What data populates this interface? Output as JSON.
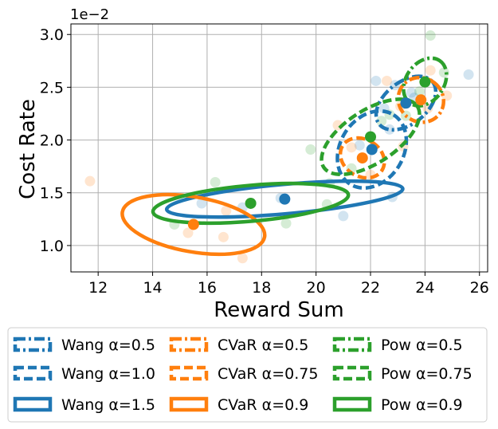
{
  "chart_data": {
    "type": "scatter",
    "title": "",
    "xlabel": "Reward Sum",
    "ylabel": "Cost Rate",
    "y_offset_label": "1e−2",
    "xlim": [
      11.0,
      26.3
    ],
    "ylim": [
      0.75,
      3.1
    ],
    "xticks": [
      12,
      14,
      16,
      18,
      20,
      22,
      24,
      26
    ],
    "yticks": [
      1.0,
      1.5,
      2.0,
      2.5,
      3.0
    ],
    "xtick_labels": [
      "12",
      "14",
      "16",
      "18",
      "20",
      "22",
      "24",
      "26"
    ],
    "ytick_labels": [
      "1.0",
      "1.5",
      "2.0",
      "2.5",
      "3.0"
    ],
    "grid": true,
    "colors": {
      "wang": "#1f77b4",
      "cvar": "#ff7f0e",
      "pow": "#2ca02c"
    },
    "scatter_points": [
      {
        "family": "wang",
        "x": 15.8,
        "y": 1.4
      },
      {
        "family": "wang",
        "x": 17.3,
        "y": 1.36
      },
      {
        "family": "wang",
        "x": 18.7,
        "y": 1.45
      },
      {
        "family": "wang",
        "x": 21.0,
        "y": 1.28
      },
      {
        "family": "wang",
        "x": 22.8,
        "y": 1.46
      },
      {
        "family": "wang",
        "x": 22.2,
        "y": 2.56
      },
      {
        "family": "wang",
        "x": 22.9,
        "y": 2.52
      },
      {
        "family": "wang",
        "x": 25.6,
        "y": 2.62
      },
      {
        "family": "wang",
        "x": 23.6,
        "y": 2.4
      },
      {
        "family": "wang",
        "x": 22.5,
        "y": 2.3
      },
      {
        "family": "wang",
        "x": 21.6,
        "y": 1.95
      },
      {
        "family": "wang",
        "x": 22.7,
        "y": 2.1
      },
      {
        "family": "wang",
        "x": 23.5,
        "y": 2.45
      },
      {
        "family": "cvar",
        "x": 11.7,
        "y": 1.61
      },
      {
        "family": "cvar",
        "x": 15.3,
        "y": 1.12
      },
      {
        "family": "cvar",
        "x": 16.6,
        "y": 1.08
      },
      {
        "family": "cvar",
        "x": 17.3,
        "y": 0.88
      },
      {
        "family": "cvar",
        "x": 16.7,
        "y": 1.33
      },
      {
        "family": "cvar",
        "x": 20.8,
        "y": 2.14
      },
      {
        "family": "cvar",
        "x": 21.3,
        "y": 1.93
      },
      {
        "family": "cvar",
        "x": 22.0,
        "y": 1.67
      },
      {
        "family": "cvar",
        "x": 23.2,
        "y": 1.94
      },
      {
        "family": "cvar",
        "x": 23.1,
        "y": 2.32
      },
      {
        "family": "cvar",
        "x": 24.1,
        "y": 2.3
      },
      {
        "family": "cvar",
        "x": 24.8,
        "y": 2.42
      },
      {
        "family": "cvar",
        "x": 24.2,
        "y": 2.66
      },
      {
        "family": "cvar",
        "x": 22.6,
        "y": 2.56
      },
      {
        "family": "pow",
        "x": 14.8,
        "y": 1.2
      },
      {
        "family": "pow",
        "x": 16.3,
        "y": 1.6
      },
      {
        "family": "pow",
        "x": 18.9,
        "y": 1.21
      },
      {
        "family": "pow",
        "x": 19.8,
        "y": 1.91
      },
      {
        "family": "pow",
        "x": 20.4,
        "y": 1.39
      },
      {
        "family": "pow",
        "x": 20.5,
        "y": 1.59
      },
      {
        "family": "pow",
        "x": 21.3,
        "y": 1.73
      },
      {
        "family": "pow",
        "x": 22.4,
        "y": 2.18
      },
      {
        "family": "pow",
        "x": 22.7,
        "y": 2.24
      },
      {
        "family": "pow",
        "x": 23.3,
        "y": 2.23
      },
      {
        "family": "pow",
        "x": 24.2,
        "y": 2.99
      },
      {
        "family": "pow",
        "x": 24.7,
        "y": 2.64
      },
      {
        "family": "pow",
        "x": 23.8,
        "y": 2.46
      }
    ],
    "series": [
      {
        "name": "Wang α=0.5",
        "family": "wang",
        "style": "dashdot",
        "mean": [
          23.3,
          2.35
        ],
        "semi_axes": [
          1.25,
          0.2
        ],
        "angle_deg": 38
      },
      {
        "name": "Wang α=1.0",
        "family": "wang",
        "style": "dashed",
        "mean": [
          22.05,
          1.91
        ],
        "semi_axes": [
          1.5,
          0.3
        ],
        "angle_deg": 58
      },
      {
        "name": "Wang α=1.5",
        "family": "wang",
        "style": "solid",
        "mean": [
          18.85,
          1.44
        ],
        "semi_axes": [
          4.35,
          0.14
        ],
        "angle_deg": 5
      },
      {
        "name": "CVaR α=0.5",
        "family": "cvar",
        "style": "dashdot",
        "mean": [
          23.85,
          2.38
        ],
        "semi_axes": [
          0.8,
          0.22
        ],
        "angle_deg": 52
      },
      {
        "name": "CVaR α=0.75",
        "family": "cvar",
        "style": "dashed",
        "mean": [
          21.7,
          1.83
        ],
        "semi_axes": [
          0.68,
          0.22
        ],
        "angle_deg": 58
      },
      {
        "name": "CVaR α=0.9",
        "family": "cvar",
        "style": "solid",
        "mean": [
          15.5,
          1.2
        ],
        "semi_axes": [
          2.65,
          0.26
        ],
        "angle_deg": -10
      },
      {
        "name": "Pow α=0.5",
        "family": "pow",
        "style": "dashdot",
        "mean": [
          24.0,
          2.55
        ],
        "semi_axes": [
          0.95,
          0.18
        ],
        "angle_deg": 55
      },
      {
        "name": "Pow α=0.75",
        "family": "pow",
        "style": "dashed",
        "mean": [
          22.0,
          2.03
        ],
        "semi_axes": [
          2.05,
          0.25
        ],
        "angle_deg": 33
      },
      {
        "name": "Pow α=0.9",
        "family": "pow",
        "style": "solid",
        "mean": [
          17.6,
          1.4
        ],
        "semi_axes": [
          3.6,
          0.17
        ],
        "angle_deg": 5
      }
    ],
    "legend": {
      "placement": "bottom",
      "ncol": 3,
      "entries": [
        "Wang α=0.5",
        "Wang α=1.0",
        "Wang α=1.5",
        "CVaR α=0.5",
        "CVaR α=0.75",
        "CVaR α=0.9",
        "Pow α=0.5",
        "Pow α=0.75",
        "Pow α=0.9"
      ]
    }
  }
}
